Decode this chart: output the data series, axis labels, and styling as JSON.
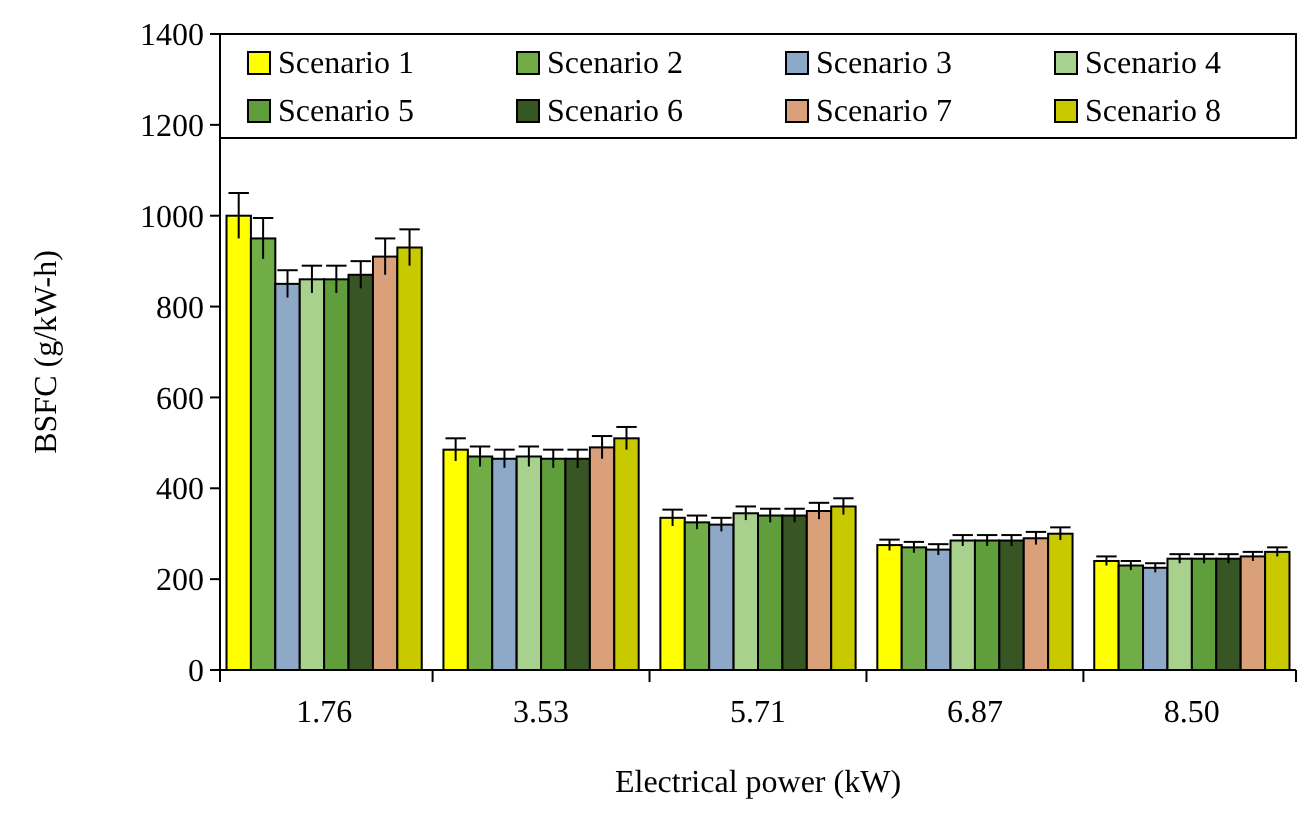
{
  "chart_data": {
    "type": "bar",
    "xlabel": "Electrical power (kW)",
    "ylabel": "BSFC (g/kW-h)",
    "categories": [
      "1.76",
      "3.53",
      "5.71",
      "6.87",
      "8.50"
    ],
    "series": [
      {
        "name": "Scenario 1",
        "color": "#ffff00",
        "values": [
          1000,
          485,
          335,
          275,
          240
        ],
        "errors": [
          50,
          25,
          18,
          12,
          10
        ]
      },
      {
        "name": "Scenario 2",
        "color": "#70ad47",
        "values": [
          950,
          470,
          325,
          270,
          230
        ],
        "errors": [
          45,
          22,
          15,
          12,
          10
        ]
      },
      {
        "name": "Scenario 3",
        "color": "#8ea9c8",
        "values": [
          850,
          465,
          320,
          265,
          225
        ],
        "errors": [
          30,
          20,
          15,
          12,
          10
        ]
      },
      {
        "name": "Scenario 4",
        "color": "#a9d18e",
        "values": [
          860,
          470,
          345,
          285,
          245
        ],
        "errors": [
          30,
          22,
          15,
          12,
          10
        ]
      },
      {
        "name": "Scenario 5",
        "color": "#5f9e3a",
        "values": [
          860,
          465,
          340,
          285,
          245
        ],
        "errors": [
          30,
          20,
          15,
          12,
          10
        ]
      },
      {
        "name": "Scenario 6",
        "color": "#375623",
        "values": [
          870,
          465,
          340,
          285,
          245
        ],
        "errors": [
          30,
          20,
          15,
          12,
          10
        ]
      },
      {
        "name": "Scenario 7",
        "color": "#d9a07a",
        "values": [
          910,
          490,
          350,
          290,
          250
        ],
        "errors": [
          40,
          25,
          18,
          14,
          10
        ]
      },
      {
        "name": "Scenario 8",
        "color": "#c9c900",
        "values": [
          930,
          510,
          360,
          300,
          260
        ],
        "errors": [
          40,
          25,
          18,
          14,
          10
        ]
      }
    ],
    "ylim": [
      0,
      1400
    ],
    "yticks": [
      0,
      200,
      400,
      600,
      800,
      1000,
      1200,
      1400
    ],
    "legend": "top",
    "grid": false
  }
}
